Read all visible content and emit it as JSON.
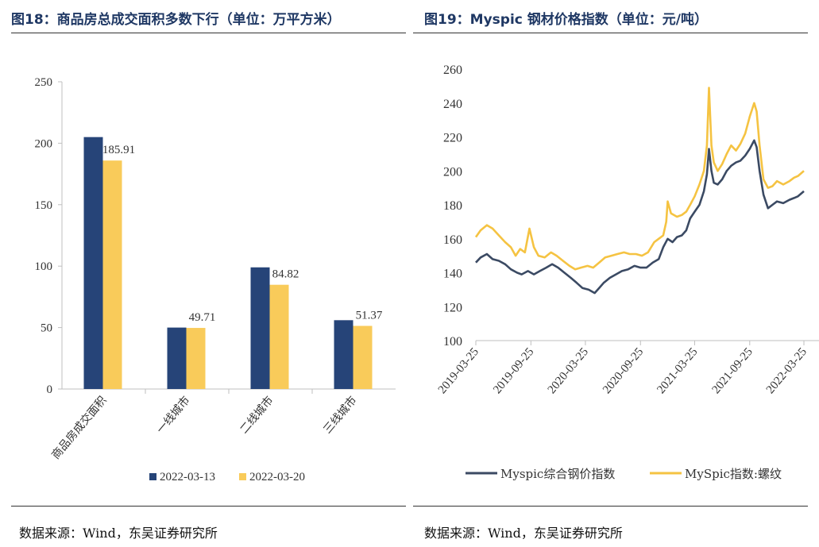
{
  "left": {
    "title": "图18：商品房总成交面积多数下行（单位：万平方米）",
    "source": "数据来源：Wind，东吴证券研究所"
  },
  "right": {
    "title": "图19：Myspic 钢材价格指数（单位：元/吨）",
    "source": "数据来源：Wind，东吴证券研究所"
  },
  "chart_data": [
    {
      "type": "bar",
      "categories": [
        "商品房成交面积",
        "一线城市",
        "二线城市",
        "三线城市"
      ],
      "series": [
        {
          "name": "2022-03-13",
          "values": [
            205,
            50,
            99,
            56
          ],
          "color": "#264478"
        },
        {
          "name": "2022-03-20",
          "values": [
            185.91,
            49.71,
            84.82,
            51.37
          ],
          "color": "#f9cb5a"
        }
      ],
      "data_labels": [
        "185.91",
        "49.71",
        "84.82",
        "51.37"
      ],
      "ylim": [
        0,
        250
      ],
      "yticks": [
        0,
        50,
        100,
        150,
        200,
        250
      ],
      "grid": false,
      "legend": "bottom"
    },
    {
      "type": "line",
      "xlim": [
        "2019-03-25",
        "2022-03-25"
      ],
      "xticks": [
        "2019-03-25",
        "2019-09-25",
        "2020-03-25",
        "2020-09-25",
        "2021-03-25",
        "2021-09-25",
        "2022-03-25"
      ],
      "ylim": [
        100,
        260
      ],
      "yticks": [
        100,
        120,
        140,
        160,
        180,
        200,
        220,
        240,
        260
      ],
      "grid": false,
      "legend": "bottom",
      "series": [
        {
          "name": "Myspic综合钢价指数",
          "color": "#3b4a63",
          "points": [
            [
              "2019-03-25",
              146
            ],
            [
              "2019-04-10",
              149
            ],
            [
              "2019-05-01",
              151
            ],
            [
              "2019-05-20",
              148
            ],
            [
              "2019-06-10",
              147
            ],
            [
              "2019-07-01",
              145
            ],
            [
              "2019-07-20",
              142
            ],
            [
              "2019-08-10",
              140
            ],
            [
              "2019-08-25",
              139
            ],
            [
              "2019-09-15",
              141
            ],
            [
              "2019-10-05",
              139
            ],
            [
              "2019-10-25",
              141
            ],
            [
              "2019-11-15",
              143
            ],
            [
              "2019-12-05",
              145
            ],
            [
              "2019-12-25",
              143
            ],
            [
              "2020-01-15",
              140
            ],
            [
              "2020-02-05",
              137
            ],
            [
              "2020-02-25",
              134
            ],
            [
              "2020-03-15",
              131
            ],
            [
              "2020-04-05",
              130
            ],
            [
              "2020-04-25",
              128
            ],
            [
              "2020-05-10",
              131
            ],
            [
              "2020-05-25",
              134
            ],
            [
              "2020-06-15",
              137
            ],
            [
              "2020-07-05",
              139
            ],
            [
              "2020-07-25",
              141
            ],
            [
              "2020-08-15",
              142
            ],
            [
              "2020-09-05",
              144
            ],
            [
              "2020-09-25",
              143
            ],
            [
              "2020-10-15",
              143
            ],
            [
              "2020-11-05",
              146
            ],
            [
              "2020-11-25",
              148
            ],
            [
              "2020-12-10",
              155
            ],
            [
              "2020-12-25",
              160
            ],
            [
              "2021-01-10",
              158
            ],
            [
              "2021-01-25",
              161
            ],
            [
              "2021-02-10",
              162
            ],
            [
              "2021-02-25",
              165
            ],
            [
              "2021-03-10",
              172
            ],
            [
              "2021-03-25",
              176
            ],
            [
              "2021-04-10",
              180
            ],
            [
              "2021-04-25",
              188
            ],
            [
              "2021-05-05",
              198
            ],
            [
              "2021-05-12",
              213
            ],
            [
              "2021-05-20",
              200
            ],
            [
              "2021-05-28",
              193
            ],
            [
              "2021-06-10",
              192
            ],
            [
              "2021-06-25",
              195
            ],
            [
              "2021-07-10",
              200
            ],
            [
              "2021-07-25",
              203
            ],
            [
              "2021-08-10",
              205
            ],
            [
              "2021-08-25",
              206
            ],
            [
              "2021-09-10",
              209
            ],
            [
              "2021-09-25",
              213
            ],
            [
              "2021-10-10",
              218
            ],
            [
              "2021-10-18",
              214
            ],
            [
              "2021-10-28",
              200
            ],
            [
              "2021-11-10",
              186
            ],
            [
              "2021-11-25",
              178
            ],
            [
              "2021-12-10",
              180
            ],
            [
              "2021-12-25",
              182
            ],
            [
              "2022-01-15",
              181
            ],
            [
              "2022-02-05",
              183
            ],
            [
              "2022-02-20",
              184
            ],
            [
              "2022-03-05",
              185
            ],
            [
              "2022-03-25",
              188
            ]
          ]
        },
        {
          "name": "MySpic指数:螺纹",
          "color": "#f5c342",
          "points": [
            [
              "2019-03-25",
              161
            ],
            [
              "2019-04-10",
              165
            ],
            [
              "2019-05-01",
              168
            ],
            [
              "2019-05-20",
              166
            ],
            [
              "2019-06-10",
              162
            ],
            [
              "2019-07-01",
              158
            ],
            [
              "2019-07-20",
              155
            ],
            [
              "2019-08-05",
              150
            ],
            [
              "2019-08-20",
              154
            ],
            [
              "2019-09-05",
              152
            ],
            [
              "2019-09-20",
              166
            ],
            [
              "2019-10-05",
              155
            ],
            [
              "2019-10-20",
              150
            ],
            [
              "2019-11-10",
              149
            ],
            [
              "2019-12-01",
              152
            ],
            [
              "2019-12-20",
              150
            ],
            [
              "2020-01-10",
              147
            ],
            [
              "2020-02-01",
              144
            ],
            [
              "2020-02-20",
              142
            ],
            [
              "2020-03-10",
              143
            ],
            [
              "2020-04-01",
              144
            ],
            [
              "2020-04-20",
              143
            ],
            [
              "2020-05-10",
              146
            ],
            [
              "2020-05-30",
              149
            ],
            [
              "2020-06-20",
              150
            ],
            [
              "2020-07-10",
              151
            ],
            [
              "2020-08-01",
              152
            ],
            [
              "2020-08-20",
              151
            ],
            [
              "2020-09-10",
              151
            ],
            [
              "2020-09-30",
              150
            ],
            [
              "2020-10-20",
              152
            ],
            [
              "2020-11-10",
              158
            ],
            [
              "2020-11-25",
              160
            ],
            [
              "2020-12-10",
              162
            ],
            [
              "2020-12-20",
              170
            ],
            [
              "2020-12-25",
              182
            ],
            [
              "2021-01-05",
              175
            ],
            [
              "2021-01-25",
              173
            ],
            [
              "2021-02-10",
              174
            ],
            [
              "2021-02-25",
              176
            ],
            [
              "2021-03-10",
              180
            ],
            [
              "2021-03-25",
              185
            ],
            [
              "2021-04-10",
              192
            ],
            [
              "2021-04-25",
              200
            ],
            [
              "2021-05-05",
              215
            ],
            [
              "2021-05-12",
              249
            ],
            [
              "2021-05-20",
              215
            ],
            [
              "2021-05-28",
              205
            ],
            [
              "2021-06-10",
              200
            ],
            [
              "2021-06-25",
              204
            ],
            [
              "2021-07-10",
              210
            ],
            [
              "2021-07-25",
              215
            ],
            [
              "2021-08-10",
              212
            ],
            [
              "2021-08-25",
              216
            ],
            [
              "2021-09-10",
              222
            ],
            [
              "2021-09-25",
              232
            ],
            [
              "2021-10-10",
              240
            ],
            [
              "2021-10-18",
              235
            ],
            [
              "2021-10-28",
              215
            ],
            [
              "2021-11-10",
              195
            ],
            [
              "2021-11-25",
              190
            ],
            [
              "2021-12-10",
              191
            ],
            [
              "2021-12-25",
              194
            ],
            [
              "2022-01-15",
              192
            ],
            [
              "2022-02-05",
              194
            ],
            [
              "2022-02-20",
              196
            ],
            [
              "2022-03-05",
              197
            ],
            [
              "2022-03-25",
              200
            ]
          ]
        }
      ]
    }
  ]
}
